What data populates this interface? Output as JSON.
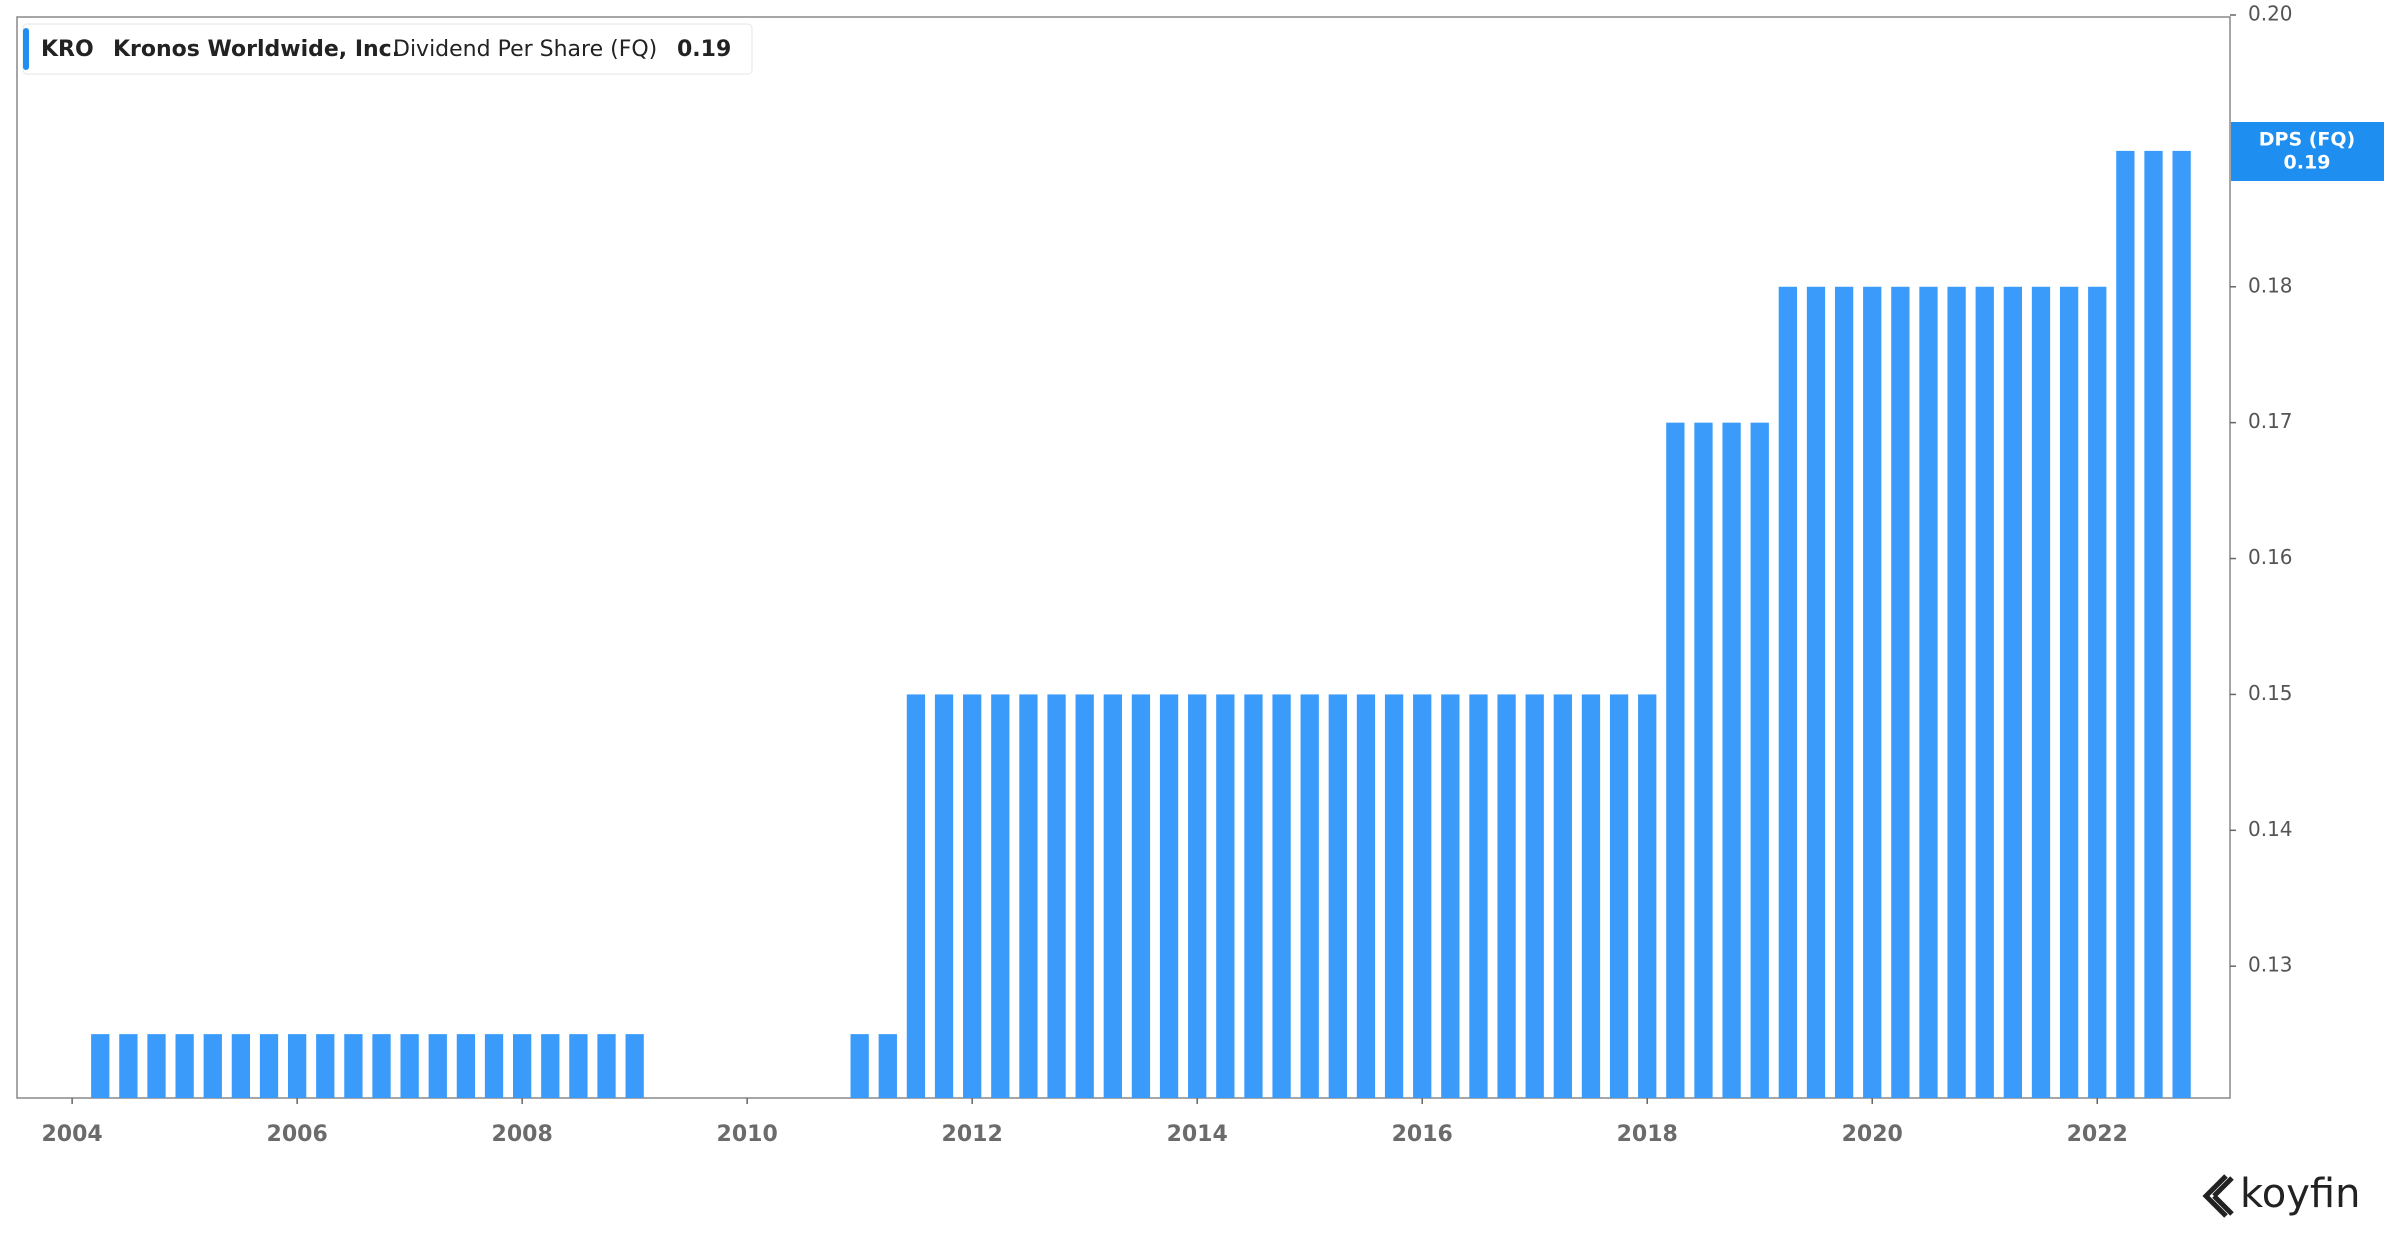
{
  "chart_data": {
    "type": "bar",
    "ticker": "KRO",
    "company": "Kronos Worldwide, Inc.",
    "metric": "Dividend Per Share (FQ)",
    "badge_label": "DPS (FQ)",
    "last_value": 0.19,
    "brand": "koyfin",
    "color": "#3a9bfb",
    "x": [
      2004.25,
      2004.5,
      2004.75,
      2005.0,
      2005.25,
      2005.5,
      2005.75,
      2006.0,
      2006.25,
      2006.5,
      2006.75,
      2007.0,
      2007.25,
      2007.5,
      2007.75,
      2008.0,
      2008.25,
      2008.5,
      2008.75,
      2009.0,
      2011.0,
      2011.25,
      2011.5,
      2011.75,
      2012.0,
      2012.25,
      2012.5,
      2012.75,
      2013.0,
      2013.25,
      2013.5,
      2013.75,
      2014.0,
      2014.25,
      2014.5,
      2014.75,
      2015.0,
      2015.25,
      2015.5,
      2015.75,
      2016.0,
      2016.25,
      2016.5,
      2016.75,
      2017.0,
      2017.25,
      2017.5,
      2017.75,
      2018.0,
      2018.25,
      2018.5,
      2018.75,
      2019.0,
      2019.25,
      2019.5,
      2019.75,
      2020.0,
      2020.25,
      2020.5,
      2020.75,
      2021.0,
      2021.25,
      2021.5,
      2021.75,
      2022.0,
      2022.25,
      2022.5,
      2022.75
    ],
    "values": [
      0.125,
      0.125,
      0.125,
      0.125,
      0.125,
      0.125,
      0.125,
      0.125,
      0.125,
      0.125,
      0.125,
      0.125,
      0.125,
      0.125,
      0.125,
      0.125,
      0.125,
      0.125,
      0.125,
      0.125,
      0.125,
      0.125,
      0.15,
      0.15,
      0.15,
      0.15,
      0.15,
      0.15,
      0.15,
      0.15,
      0.15,
      0.15,
      0.15,
      0.15,
      0.15,
      0.15,
      0.15,
      0.15,
      0.15,
      0.15,
      0.15,
      0.15,
      0.15,
      0.15,
      0.15,
      0.15,
      0.15,
      0.15,
      0.15,
      0.17,
      0.17,
      0.17,
      0.17,
      0.18,
      0.18,
      0.18,
      0.18,
      0.18,
      0.18,
      0.18,
      0.18,
      0.18,
      0.18,
      0.18,
      0.18,
      0.19,
      0.19,
      0.19
    ],
    "xlim": [
      2003.51,
      2023.18
    ],
    "xticks": [
      2004,
      2006,
      2008,
      2010,
      2012,
      2014,
      2016,
      2018,
      2020,
      2022
    ],
    "ylim": [
      0.1203,
      0.2
    ],
    "yticks": [
      0.13,
      0.14,
      0.15,
      0.16,
      0.17,
      0.18,
      {
        "value": 0.2,
        "label": "0.20"
      }
    ]
  }
}
